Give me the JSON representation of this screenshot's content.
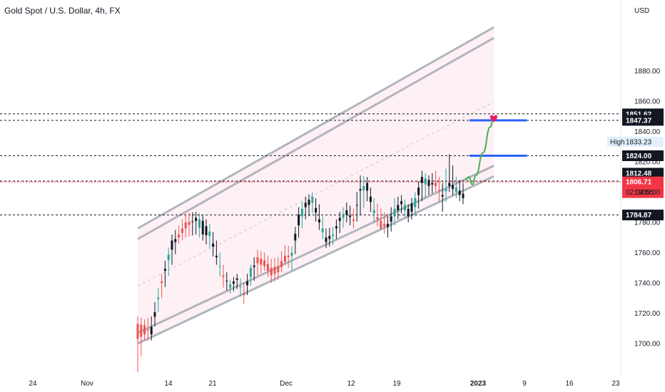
{
  "header": {
    "title": "Gold Spot / U.S. Dollar, 4h, FX",
    "currency": "USD"
  },
  "chart_data": {
    "type": "candlestick",
    "symbol": "Gold Spot / U.S. Dollar",
    "interval": "4h",
    "exchange": "FX",
    "currency": "USD",
    "y_ticks": [
      1700,
      1720,
      1740,
      1760,
      1780,
      1800,
      1820,
      1840,
      1860,
      1880
    ],
    "y_tick_labels": [
      "1700.00",
      "1720.00",
      "1740.00",
      "1760.00",
      "1780.00",
      "1800.00",
      "1820.00",
      "1840.00",
      "1860.00",
      "1880.00"
    ],
    "x_ticks": [
      {
        "label": "24",
        "bold": false
      },
      {
        "label": "Nov",
        "bold": false
      },
      {
        "label": "14",
        "bold": false
      },
      {
        "label": "21",
        "bold": false
      },
      {
        "label": "Dec",
        "bold": false
      },
      {
        "label": "12",
        "bold": false
      },
      {
        "label": "19",
        "bold": false
      },
      {
        "label": "2023",
        "bold": true
      },
      {
        "label": "9",
        "bold": false
      },
      {
        "label": "16",
        "bold": false
      },
      {
        "label": "23",
        "bold": false
      }
    ],
    "candle_path": [
      [
        0,
        1713,
        1718,
        1681,
        1703
      ],
      [
        2,
        1712,
        1716,
        1702,
        1706
      ],
      [
        4,
        1706,
        1718,
        1702,
        1711
      ],
      [
        7,
        1741,
        1746,
        1730,
        1740
      ],
      [
        10,
        1762,
        1772,
        1752,
        1768
      ],
      [
        12,
        1772,
        1778,
        1766,
        1770
      ],
      [
        14,
        1780,
        1786,
        1770,
        1776
      ],
      [
        17,
        1781,
        1787,
        1772,
        1783
      ],
      [
        19,
        1772,
        1785,
        1768,
        1781
      ],
      [
        21,
        1771,
        1779,
        1763,
        1774
      ],
      [
        23,
        1757,
        1768,
        1752,
        1758
      ],
      [
        25,
        1745,
        1752,
        1737,
        1744
      ],
      [
        27,
        1737,
        1742,
        1733,
        1739
      ],
      [
        29,
        1742,
        1746,
        1736,
        1743
      ],
      [
        31,
        1733,
        1740,
        1726,
        1732
      ],
      [
        33,
        1744,
        1752,
        1738,
        1750
      ],
      [
        35,
        1757,
        1762,
        1745,
        1753
      ],
      [
        37,
        1755,
        1760,
        1748,
        1751
      ],
      [
        39,
        1750,
        1756,
        1740,
        1745
      ],
      [
        41,
        1751,
        1757,
        1742,
        1747
      ],
      [
        43,
        1758,
        1765,
        1752,
        1754
      ],
      [
        45,
        1758,
        1764,
        1748,
        1760
      ],
      [
        47,
        1778,
        1790,
        1770,
        1785
      ],
      [
        49,
        1790,
        1797,
        1782,
        1793
      ],
      [
        51,
        1793,
        1800,
        1786,
        1797
      ],
      [
        53,
        1780,
        1792,
        1775,
        1782
      ],
      [
        55,
        1767,
        1776,
        1763,
        1770
      ],
      [
        57,
        1771,
        1777,
        1765,
        1772
      ],
      [
        59,
        1781,
        1787,
        1773,
        1783
      ],
      [
        61,
        1785,
        1793,
        1780,
        1788
      ],
      [
        63,
        1782,
        1789,
        1776,
        1781
      ],
      [
        65,
        1801,
        1811,
        1785,
        1802
      ],
      [
        67,
        1801,
        1810,
        1794,
        1806
      ],
      [
        69,
        1786,
        1796,
        1780,
        1788
      ],
      [
        71,
        1781,
        1789,
        1775,
        1776
      ],
      [
        73,
        1777,
        1784,
        1770,
        1779
      ],
      [
        75,
        1784,
        1796,
        1778,
        1789
      ],
      [
        77,
        1792,
        1798,
        1786,
        1794
      ],
      [
        79,
        1784,
        1792,
        1780,
        1789
      ],
      [
        81,
        1790,
        1800,
        1784,
        1796
      ],
      [
        83,
        1806,
        1814,
        1794,
        1810
      ],
      [
        85,
        1804,
        1811,
        1798,
        1808
      ],
      [
        87,
        1806,
        1814,
        1800,
        1804
      ],
      [
        89,
        1797,
        1806,
        1787,
        1798
      ],
      [
        91,
        1804,
        1825,
        1800,
        1806
      ],
      [
        93,
        1800,
        1810,
        1796,
        1803
      ],
      [
        95,
        1796,
        1806,
        1792,
        1799
      ]
    ],
    "channel": {
      "upper": [
        [
          0,
          1776
        ],
        [
          65,
          1859
        ]
      ],
      "inner_upper": [
        [
          0,
          1769
        ],
        [
          65,
          1852
        ]
      ],
      "inner_lower": [
        [
          0,
          1707
        ],
        [
          65,
          1776
        ]
      ],
      "lower": [
        [
          0,
          1700
        ],
        [
          65,
          1769
        ]
      ]
    },
    "horizontal_levels": [
      {
        "value": 1851.62,
        "label": "1851.62",
        "style": "dashed"
      },
      {
        "value": 1847.37,
        "label": "1847.37",
        "style": "dashed"
      },
      {
        "value": 1824.0,
        "label": "1824.00",
        "style": "dashed"
      },
      {
        "value": 1812.48,
        "label": "1812.48",
        "style": "none"
      },
      {
        "value": 1807.29,
        "label": "1807.29",
        "style": "dashed"
      },
      {
        "value": 1784.87,
        "label": "1784.87",
        "style": "dashed"
      }
    ],
    "last_price": {
      "value": 1806.71,
      "label": "1806.71",
      "countdown": "02:04:55"
    },
    "high_marker": {
      "label": "High",
      "value_label": "1833.23"
    },
    "target_lines": [
      1847.37,
      1824.0
    ],
    "projection": [
      [
        0,
        1808
      ],
      [
        1,
        1810
      ],
      [
        2,
        1805
      ],
      [
        3,
        1811
      ],
      [
        5,
        1826
      ],
      [
        7,
        1843
      ],
      [
        8,
        1849
      ]
    ],
    "colors": {
      "up": "#26a69a",
      "down": "#ef5350",
      "candle_dark": "#131722",
      "channel": "#b2b5be",
      "channel_fill": "#fdeef2",
      "target": "#2962ff",
      "projection": "#4caf50",
      "heart": "#e91e63",
      "last_price": "#f23645"
    }
  }
}
